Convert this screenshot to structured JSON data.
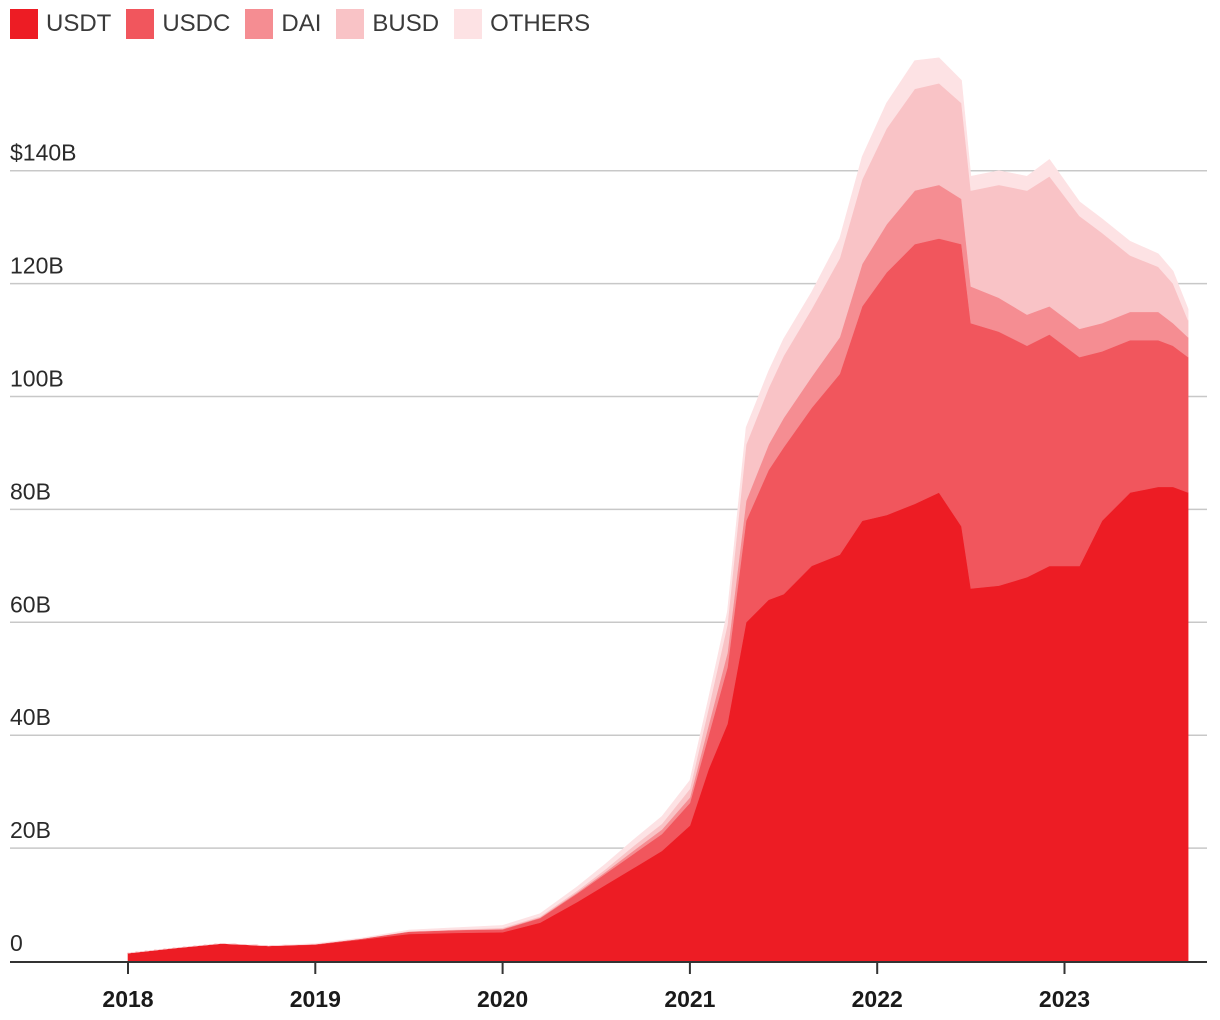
{
  "chart_data": {
    "type": "area",
    "stacked": true,
    "title": "",
    "xlabel": "",
    "ylabel": "",
    "x_range": [
      2017.35,
      2023.75
    ],
    "y_range": [
      0,
      170
    ],
    "y_unit": "billions USD",
    "y_ticks": [
      {
        "value": 0,
        "label": "0"
      },
      {
        "value": 20,
        "label": "20B"
      },
      {
        "value": 40,
        "label": "40B"
      },
      {
        "value": 60,
        "label": "60B"
      },
      {
        "value": 80,
        "label": "80B"
      },
      {
        "value": 100,
        "label": "100B"
      },
      {
        "value": 120,
        "label": "120B"
      },
      {
        "value": 140,
        "label": "$140B"
      }
    ],
    "x_ticks": [
      {
        "value": 2018,
        "label": "2018"
      },
      {
        "value": 2019,
        "label": "2019"
      },
      {
        "value": 2020,
        "label": "2020"
      },
      {
        "value": 2021,
        "label": "2021"
      },
      {
        "value": 2022,
        "label": "2022"
      },
      {
        "value": 2023,
        "label": "2023"
      }
    ],
    "grid": true,
    "legend_position": "top-left",
    "x": [
      2018.0,
      2018.25,
      2018.5,
      2018.75,
      2019.0,
      2019.25,
      2019.5,
      2019.75,
      2020.0,
      2020.2,
      2020.4,
      2020.55,
      2020.7,
      2020.85,
      2021.0,
      2021.1,
      2021.2,
      2021.3,
      2021.42,
      2021.5,
      2021.65,
      2021.8,
      2021.92,
      2022.05,
      2022.2,
      2022.33,
      2022.45,
      2022.5,
      2022.65,
      2022.8,
      2022.92,
      2023.08,
      2023.2,
      2023.35,
      2023.5,
      2023.58,
      2023.66
    ],
    "series": [
      {
        "name": "USDT",
        "color": "#ed1c24",
        "values": [
          1.4,
          2.3,
          3.1,
          2.7,
          2.9,
          3.8,
          4.8,
          5.0,
          5.1,
          6.8,
          10.5,
          13.5,
          16.5,
          19.5,
          24.0,
          34.0,
          42.0,
          60.0,
          64.0,
          65.0,
          70.0,
          72.0,
          78.0,
          79.0,
          81.0,
          83.0,
          77.0,
          66.0,
          66.5,
          68.0,
          70.0,
          70.0,
          78.0,
          83.0,
          84.0,
          84.0,
          83.0
        ]
      },
      {
        "name": "USDC",
        "color": "#f1565d",
        "values": [
          0.0,
          0.0,
          0.0,
          0.0,
          0.1,
          0.2,
          0.4,
          0.5,
          0.5,
          0.8,
          1.5,
          2.0,
          2.5,
          3.0,
          4.0,
          6.0,
          10.0,
          18.0,
          23.0,
          26.0,
          28.0,
          32.0,
          38.0,
          43.0,
          46.0,
          45.0,
          50.0,
          47.0,
          45.0,
          41.0,
          41.0,
          37.0,
          30.0,
          27.0,
          26.0,
          25.0,
          24.0
        ]
      },
      {
        "name": "DAI",
        "color": "#f58d92",
        "values": [
          0.0,
          0.0,
          0.0,
          0.0,
          0.0,
          0.0,
          0.0,
          0.0,
          0.1,
          0.1,
          0.2,
          0.3,
          0.6,
          0.8,
          1.0,
          1.8,
          2.6,
          3.5,
          4.5,
          5.2,
          5.5,
          6.5,
          7.5,
          8.5,
          9.5,
          9.5,
          8.0,
          6.5,
          6.0,
          5.5,
          5.0,
          5.0,
          5.0,
          5.0,
          5.0,
          4.0,
          3.5
        ]
      },
      {
        "name": "BUSD",
        "color": "#f9c3c6",
        "values": [
          0.0,
          0.0,
          0.0,
          0.0,
          0.0,
          0.0,
          0.1,
          0.1,
          0.2,
          0.2,
          0.3,
          0.5,
          0.8,
          1.0,
          1.5,
          3.0,
          5.0,
          10.0,
          10.0,
          11.0,
          12.0,
          14.0,
          15.0,
          17.0,
          18.0,
          18.0,
          17.0,
          17.0,
          20.0,
          22.0,
          23.0,
          20.0,
          16.0,
          10.0,
          8.0,
          7.0,
          3.0
        ]
      },
      {
        "name": "OTHERS",
        "color": "#fde2e4",
        "values": [
          0.0,
          0.0,
          0.0,
          0.0,
          0.1,
          0.1,
          0.2,
          0.3,
          0.4,
          0.5,
          0.7,
          0.9,
          1.1,
          1.3,
          1.5,
          1.8,
          2.3,
          3.0,
          3.0,
          3.0,
          3.0,
          3.5,
          4.0,
          4.5,
          5.0,
          4.5,
          4.0,
          2.5,
          2.5,
          2.5,
          3.0,
          2.5,
          2.5,
          2.5,
          2.3,
          2.2,
          2.0
        ]
      }
    ]
  }
}
